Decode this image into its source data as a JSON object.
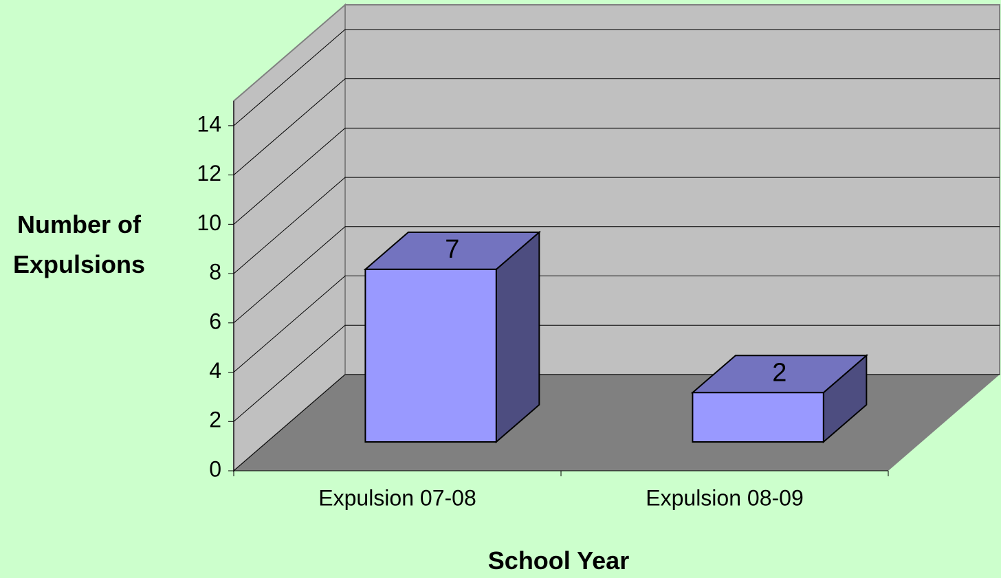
{
  "chart_data": {
    "type": "bar3d",
    "y_label": "Number of Expulsions",
    "x_label": "School Year",
    "categories": [
      "Expulsion 07-08",
      "Expulsion 08-09"
    ],
    "values": [
      7,
      2
    ],
    "color": "#9999ff",
    "ylim": [
      0,
      15
    ],
    "yticks": [
      0,
      2,
      4,
      6,
      8,
      10,
      12,
      14
    ],
    "grid": true
  }
}
